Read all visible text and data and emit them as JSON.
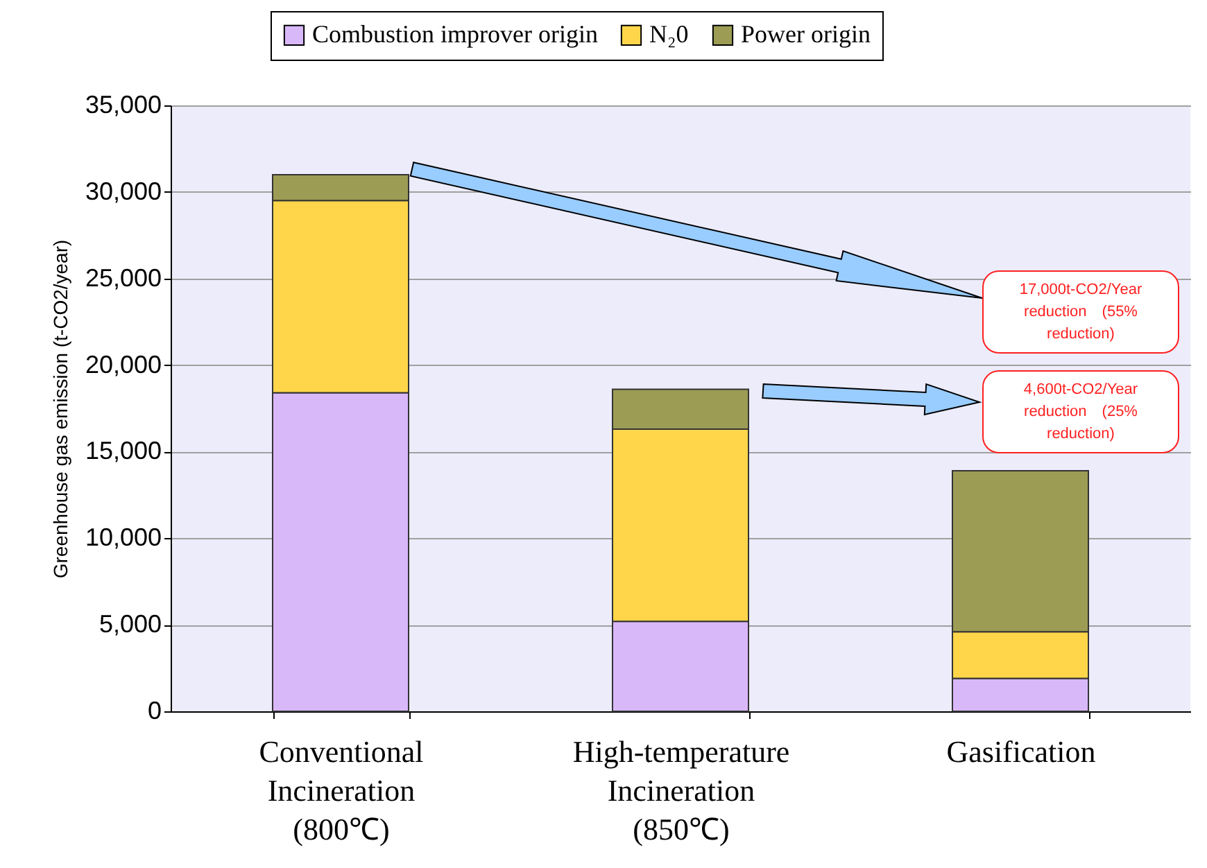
{
  "chart_data": {
    "type": "bar",
    "stacked": true,
    "ylabel": "Greenhouse gas emission (t-CO2/year)",
    "categories": [
      "Conventional\nIncineration\n(800℃)",
      "High-temperature\nIncineration\n(850℃)",
      "Gasification"
    ],
    "series": [
      {
        "name": "Combustion improver origin",
        "color": "#d9b8fa",
        "values": [
          18400,
          5200,
          1900
        ]
      },
      {
        "name": "N₂0",
        "color": "#ffd64a",
        "values": [
          11100,
          11100,
          2700
        ]
      },
      {
        "name": "Power origin",
        "color": "#9c9c55",
        "values": [
          1500,
          2300,
          9300
        ]
      }
    ],
    "ylim": [
      0,
      35000
    ],
    "yticks": [
      0,
      {
        "value": 5000,
        "label": "5,000"
      },
      {
        "value": 10000,
        "label": "10,000"
      },
      {
        "value": 15000,
        "label": "15,000"
      },
      {
        "value": 20000,
        "label": "20,000"
      },
      {
        "value": 25000,
        "label": "25,000"
      },
      {
        "value": 30000,
        "label": "30,000"
      },
      {
        "value": 35000,
        "label": "35,000"
      }
    ],
    "grid": "y",
    "legend": "top",
    "annotations": [
      "17,000t-CO2/Year reduction　(55% reduction)",
      "4,600t-CO2/Year reduction　(25% reduction)"
    ]
  }
}
